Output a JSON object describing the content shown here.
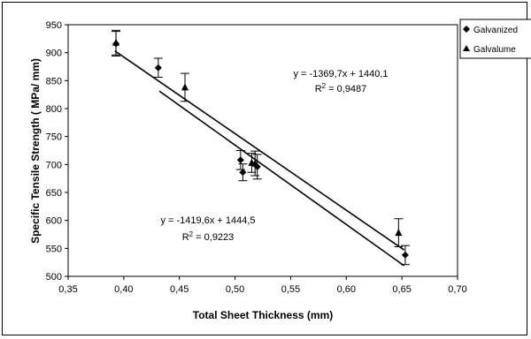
{
  "chart_data": {
    "type": "scatter",
    "xlabel": "Total Sheet Thickness (mm)",
    "ylabel": "Specific Tensile Strength ( MPa/ mm)",
    "xlim": [
      0.35,
      0.7
    ],
    "ylim": [
      500,
      950
    ],
    "x_ticks": [
      "0,35",
      "0,40",
      "0,45",
      "0,50",
      "0,55",
      "0,60",
      "0,65",
      "0,70"
    ],
    "y_ticks": [
      "500",
      "550",
      "600",
      "650",
      "700",
      "750",
      "800",
      "850",
      "900",
      "950"
    ],
    "grid": false,
    "legend_position": "top-right outside",
    "series": [
      {
        "name": "Galvanized",
        "marker": "diamond",
        "points": [
          {
            "x": 0.393,
            "y": 916,
            "err": 22
          },
          {
            "x": 0.431,
            "y": 873,
            "err": 17
          },
          {
            "x": 0.505,
            "y": 708,
            "err": 17
          },
          {
            "x": 0.507,
            "y": 686,
            "err": 15
          },
          {
            "x": 0.52,
            "y": 696,
            "err": 22
          },
          {
            "x": 0.653,
            "y": 538,
            "err": 17
          }
        ],
        "trendline": {
          "slope": -1419.6,
          "intercept": 1444.5,
          "x_range": [
            0.432,
            0.652
          ],
          "equation": "y = -1419,6x + 1444,5",
          "r2_value": "0,9223"
        }
      },
      {
        "name": "Galvalume",
        "marker": "triangle",
        "points": [
          {
            "x": 0.393,
            "y": 918,
            "err": 22
          },
          {
            "x": 0.455,
            "y": 838,
            "err": 25
          },
          {
            "x": 0.515,
            "y": 703,
            "err": 17
          },
          {
            "x": 0.518,
            "y": 702,
            "err": 22
          },
          {
            "x": 0.647,
            "y": 578,
            "err": 25
          }
        ],
        "trendline": {
          "slope": -1369.7,
          "intercept": 1440.1,
          "x_range": [
            0.392,
            0.652
          ],
          "equation": "y = -1369,7x + 1440,1",
          "r2_value": "0,9487"
        }
      }
    ],
    "r2_prefix": "R",
    "r2_superscript": "2",
    "r2_suffix": " = "
  }
}
